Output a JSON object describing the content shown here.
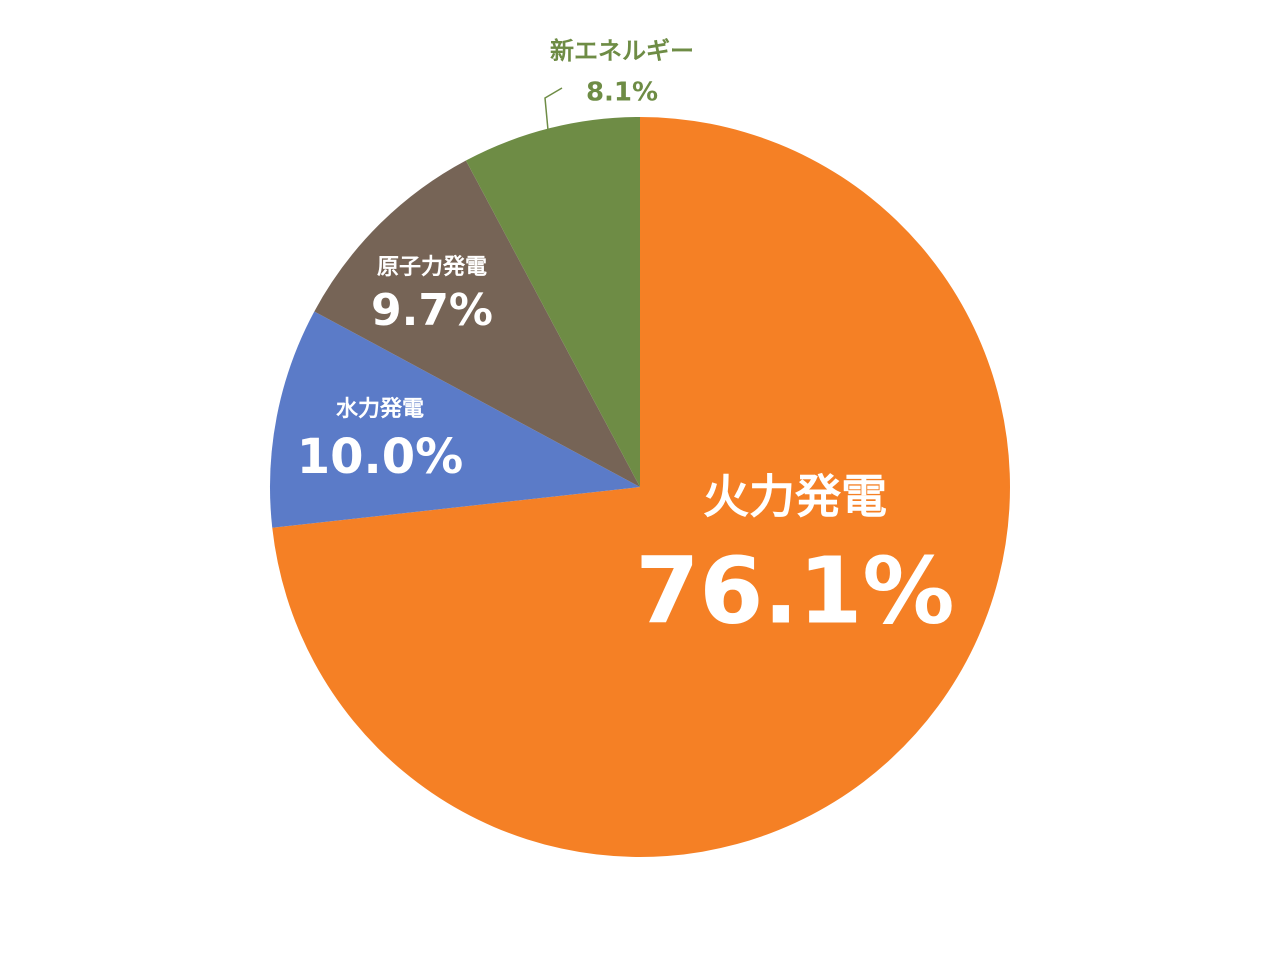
{
  "chart_data": {
    "type": "pie",
    "categories": [
      "火力発電",
      "水力発電",
      "原子力発電",
      "新エネルギー"
    ],
    "values": [
      76.1,
      10.0,
      9.7,
      8.1
    ],
    "value_labels": [
      "76.1%",
      "10.0%",
      "9.7%",
      "8.1%"
    ],
    "colors": [
      "#f58025",
      "#5b7bc8",
      "#766456",
      "#6e8c45"
    ]
  }
}
